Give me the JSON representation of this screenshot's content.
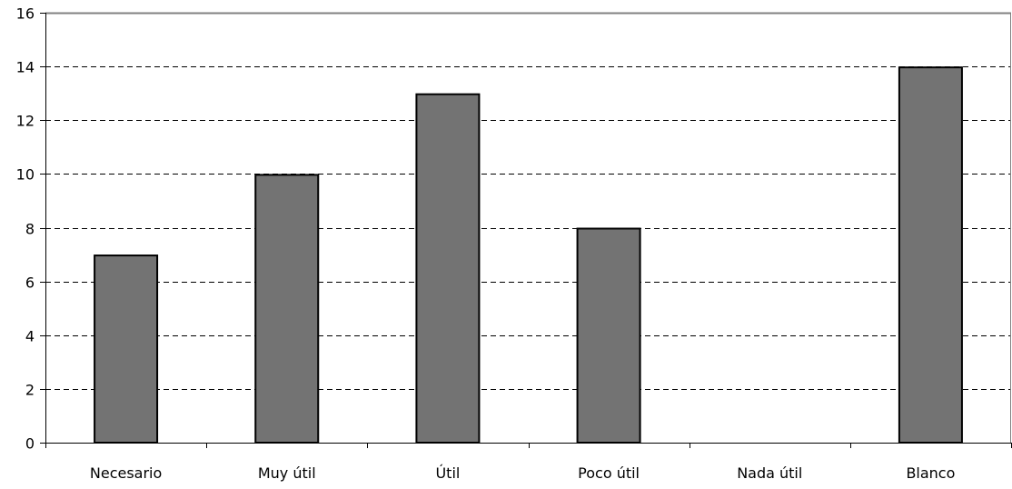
{
  "chart_data": {
    "type": "bar",
    "title": "",
    "xlabel": "",
    "ylabel": "",
    "categories": [
      "Necesario",
      "Muy útil",
      "Útil",
      "Poco útil",
      "Nada útil",
      "Blanco"
    ],
    "values": [
      7,
      10,
      13,
      8,
      0,
      14
    ],
    "ylim": [
      0,
      16
    ],
    "yticks": [
      "0",
      "2",
      "4",
      "6",
      "8",
      "10",
      "12",
      "14",
      "16"
    ],
    "grid": "horizontal-dashed",
    "legend": "none",
    "colors": {
      "bar_fill": "#737373",
      "bar_stroke": "#000000",
      "grid": "#000000",
      "axis": "#000000",
      "frame": "#808080"
    }
  }
}
